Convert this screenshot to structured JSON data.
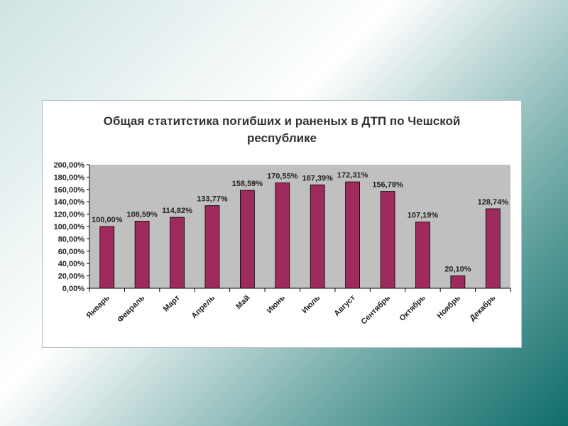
{
  "chart_data": {
    "type": "bar",
    "title_lines": [
      "Общая статитстика погибших и раненых в ДТП по Чешской",
      "республике"
    ],
    "categories": [
      "Январь",
      "Февраль",
      "Март",
      "Апрель",
      "Май",
      "Июнь",
      "Июль",
      "Август",
      "Сентябрь",
      "Октябрь",
      "Ноябрь",
      "Декабрь"
    ],
    "values": [
      100.0,
      108.59,
      114.82,
      133.77,
      158.59,
      170.55,
      167.39,
      172.31,
      156.78,
      107.19,
      20.1,
      128.74
    ],
    "value_labels": [
      "100,00%",
      "108,59%",
      "114,82%",
      "133,77%",
      "158,59%",
      "170,55%",
      "167,39%",
      "172,31%",
      "156,78%",
      "107,19%",
      "20,10%",
      "128,74%"
    ],
    "yticks": [
      0,
      20,
      40,
      60,
      80,
      100,
      120,
      140,
      160,
      180,
      200
    ],
    "ytick_labels": [
      "0,00%",
      "20,00%",
      "40,00%",
      "60,00%",
      "80,00%",
      "100,00%",
      "120,00%",
      "140,00%",
      "160,00%",
      "180,00%",
      "200,00%"
    ],
    "ylim": [
      0,
      200
    ],
    "grid": false,
    "colors": {
      "bar": "#9e2a5e",
      "plot_bg": "#c0c0c0"
    }
  }
}
